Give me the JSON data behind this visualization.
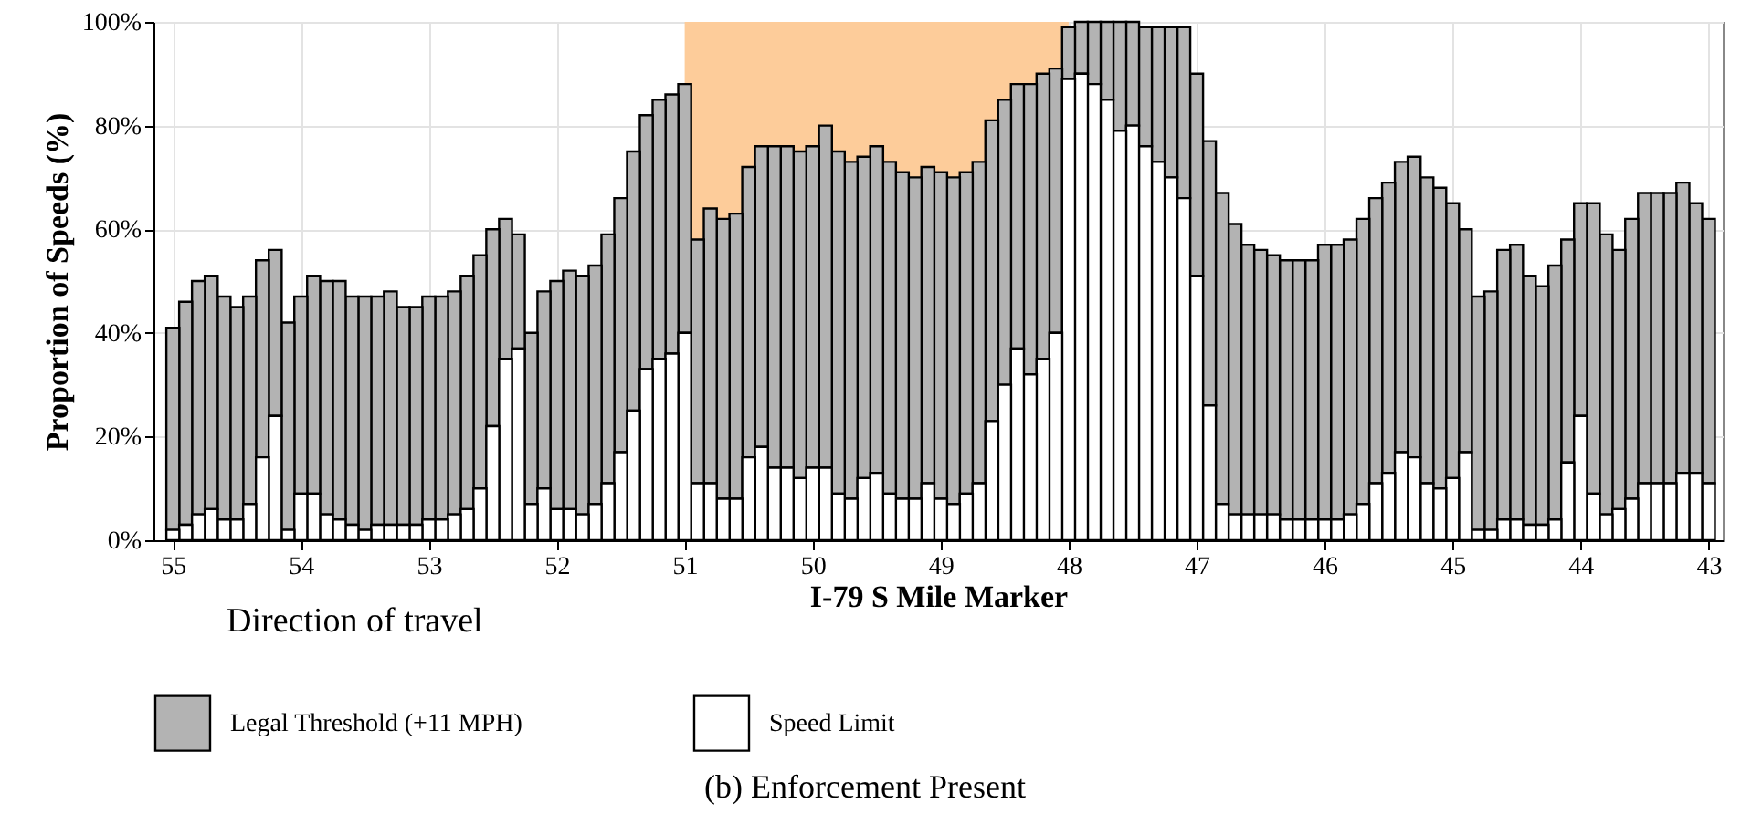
{
  "chart_data": {
    "type": "bar",
    "title": "(b) Enforcement Present",
    "xlabel": "I-79 S Mile Marker",
    "ylabel": "Proportion of Speeds (%)",
    "annotations": [
      "Direction of travel"
    ],
    "x": [
      55.0,
      54.9,
      54.8,
      54.7,
      54.6,
      54.5,
      54.4,
      54.3,
      54.2,
      54.1,
      54.0,
      53.9,
      53.8,
      53.7,
      53.6,
      53.5,
      53.4,
      53.3,
      53.2,
      53.1,
      53.0,
      52.9,
      52.8,
      52.7,
      52.6,
      52.5,
      52.4,
      52.3,
      52.2,
      52.1,
      52.0,
      51.9,
      51.8,
      51.7,
      51.6,
      51.5,
      51.4,
      51.3,
      51.2,
      51.1,
      51.0,
      50.9,
      50.8,
      50.7,
      50.6,
      50.5,
      50.4,
      50.3,
      50.2,
      50.1,
      50.0,
      49.9,
      49.8,
      49.7,
      49.6,
      49.5,
      49.4,
      49.3,
      49.2,
      49.1,
      49.0,
      48.9,
      48.8,
      48.7,
      48.6,
      48.5,
      48.4,
      48.3,
      48.2,
      48.1,
      48.0,
      47.9,
      47.8,
      47.7,
      47.6,
      47.5,
      47.4,
      47.3,
      47.2,
      47.1,
      47.0,
      46.9,
      46.8,
      46.7,
      46.6,
      46.5,
      46.4,
      46.3,
      46.2,
      46.1,
      46.0,
      45.9,
      45.8,
      45.7,
      45.6,
      45.5,
      45.4,
      45.3,
      45.2,
      45.1,
      45.0,
      44.9,
      44.8,
      44.7,
      44.6,
      44.5,
      44.4,
      44.3,
      44.2,
      44.1,
      44.0,
      43.9,
      43.8,
      43.7,
      43.6,
      43.5,
      43.4,
      43.3,
      43.2,
      43.1,
      43.0
    ],
    "series": [
      {
        "name": "Speed Limit",
        "color": "#ffffff",
        "values": [
          2,
          3,
          5,
          6,
          4,
          4,
          7,
          16,
          24,
          2,
          9,
          9,
          5,
          4,
          3,
          2,
          3,
          3,
          3,
          3,
          4,
          4,
          5,
          6,
          10,
          22,
          35,
          37,
          7,
          10,
          6,
          6,
          5,
          7,
          11,
          17,
          25,
          33,
          35,
          36,
          40,
          11,
          11,
          8,
          8,
          16,
          18,
          14,
          14,
          12,
          14,
          14,
          9,
          8,
          12,
          13,
          9,
          8,
          8,
          11,
          8,
          7,
          9,
          11,
          23,
          30,
          37,
          32,
          35,
          40,
          89,
          90,
          88,
          85,
          79,
          80,
          76,
          73,
          70,
          66,
          51,
          26,
          7,
          5,
          5,
          5,
          5,
          4,
          4,
          4,
          4,
          4,
          5,
          7,
          11,
          13,
          17,
          16,
          11,
          10,
          12,
          17,
          2,
          2,
          4,
          4,
          3,
          3,
          4,
          15,
          24,
          9,
          5,
          6,
          8,
          11,
          11,
          11,
          13,
          13,
          11
        ]
      },
      {
        "name": "Legal Threshold (+11 MPH)",
        "color": "#b3b3b3",
        "values": [
          39,
          43,
          45,
          45,
          43,
          41,
          40,
          38,
          32,
          40,
          38,
          42,
          45,
          46,
          44,
          45,
          44,
          45,
          42,
          42,
          43,
          43,
          43,
          45,
          45,
          38,
          27,
          22,
          33,
          38,
          44,
          46,
          46,
          46,
          48,
          49,
          50,
          49,
          50,
          50,
          48,
          47,
          53,
          54,
          55,
          56,
          58,
          62,
          62,
          63,
          62,
          66,
          66,
          65,
          62,
          63,
          64,
          63,
          62,
          61,
          63,
          63,
          62,
          62,
          58,
          55,
          51,
          56,
          55,
          51,
          10,
          10,
          12,
          15,
          21,
          20,
          23,
          26,
          29,
          33,
          39,
          51,
          60,
          56,
          52,
          51,
          50,
          50,
          50,
          50,
          53,
          53,
          53,
          55,
          55,
          56,
          56,
          58,
          59,
          58,
          53,
          43,
          45,
          46,
          52,
          53,
          48,
          46,
          49,
          43,
          41,
          56,
          54,
          50,
          54,
          56,
          56,
          56,
          56,
          52,
          51
        ]
      }
    ],
    "stacked": true,
    "xlim": [
      55.08,
      42.96
    ],
    "xticks": [
      55,
      54,
      53,
      52,
      51,
      50,
      49,
      48,
      47,
      46,
      45,
      44,
      43
    ],
    "ylim": [
      0,
      100
    ],
    "yticks": [
      {
        "value": 0,
        "label": "0%"
      },
      {
        "value": 20,
        "label": "20%"
      },
      {
        "value": 40,
        "label": "40%"
      },
      {
        "value": 60,
        "label": "60%"
      },
      {
        "value": 80,
        "label": "80%"
      },
      {
        "value": 100,
        "label": "100%"
      }
    ],
    "bands": [
      {
        "axis": "x",
        "from": 51,
        "to": 48,
        "color": "#fdcc9a"
      }
    ],
    "grid": true,
    "legend": "bottom"
  }
}
